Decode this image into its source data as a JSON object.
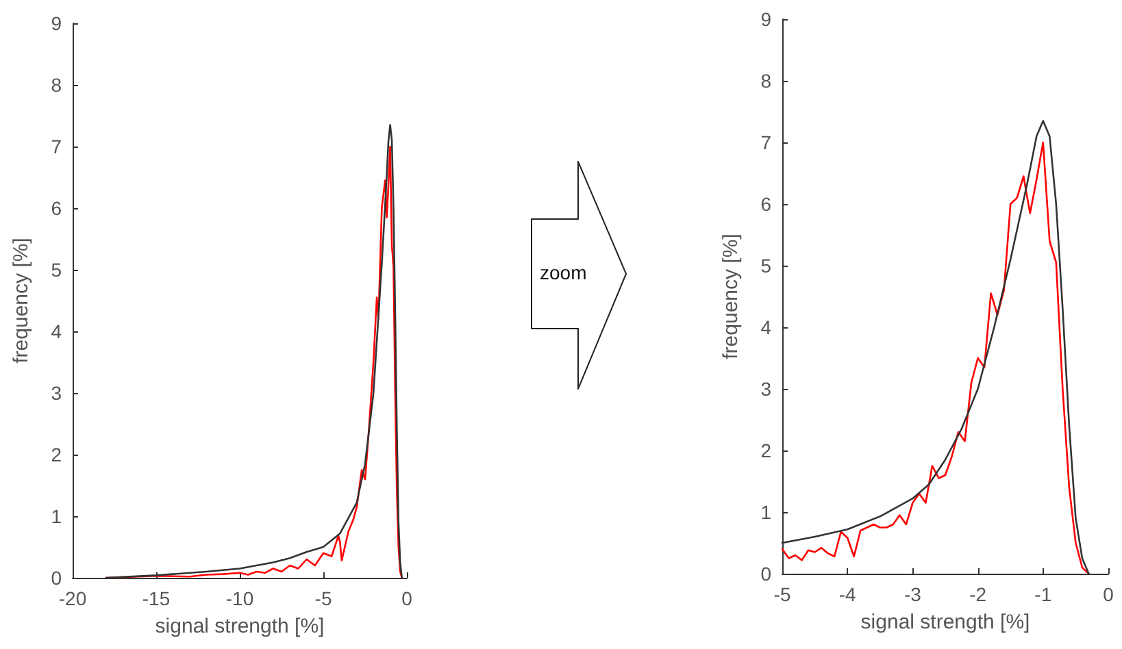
{
  "chart_data": [
    {
      "type": "line",
      "xlabel": "signal strength [%]",
      "ylabel": "frequency [%]",
      "xlim": [
        -20,
        0
      ],
      "xticks": [
        -20,
        -15,
        -10,
        -5,
        0
      ],
      "ylim": [
        0,
        9
      ],
      "yticks": [
        0,
        1,
        2,
        3,
        4,
        5,
        6,
        7,
        8,
        9
      ],
      "grid": false,
      "series": [
        {
          "color": "#ff0000",
          "x": [
            -18,
            -15,
            -13,
            -12,
            -11,
            -10,
            -9.5,
            -9,
            -8.5,
            -8,
            -7.5,
            -7,
            -6.5,
            -6,
            -5.5,
            -5,
            -4.5,
            -4.1,
            -4,
            -3.9,
            -3.5,
            -3.2,
            -3,
            -2.7,
            -2.5,
            -2.3,
            -2.1,
            -2,
            -1.8,
            -1.7,
            -1.5,
            -1.3,
            -1.2,
            -1.1,
            -1,
            -0.9,
            -0.8,
            -0.7,
            -0.6,
            -0.5,
            -0.4,
            -0.3
          ],
          "values": [
            0,
            0.03,
            0.02,
            0.05,
            0.06,
            0.08,
            0.05,
            0.1,
            0.08,
            0.15,
            0.1,
            0.2,
            0.15,
            0.3,
            0.2,
            0.4,
            0.35,
            0.68,
            0.58,
            0.28,
            0.75,
            0.95,
            1.15,
            1.75,
            1.6,
            2.3,
            3.1,
            3.5,
            4.55,
            4.2,
            6.0,
            6.45,
            5.85,
            6.4,
            7.0,
            5.4,
            5.05,
            3.0,
            1.4,
            0.5,
            0.1,
            0
          ]
        },
        {
          "color": "#333333",
          "x": [
            -18,
            -15,
            -12,
            -10,
            -8,
            -7,
            -6,
            -5,
            -4,
            -3,
            -2.5,
            -2,
            -1.5,
            -1.25,
            -1.1,
            -1,
            -0.9,
            -0.8,
            -0.7,
            -0.6,
            -0.5,
            -0.4,
            -0.3
          ],
          "values": [
            0,
            0.04,
            0.1,
            0.15,
            0.25,
            0.32,
            0.42,
            0.5,
            0.72,
            1.22,
            1.85,
            3.0,
            5.1,
            6.3,
            7.1,
            7.35,
            7.1,
            6.0,
            4.3,
            2.4,
            0.9,
            0.25,
            0
          ]
        }
      ]
    },
    {
      "type": "other",
      "annotations": [
        "zoom"
      ]
    },
    {
      "type": "line",
      "xlabel": "signal strength [%]",
      "ylabel": "frequency [%]",
      "xlim": [
        -5,
        0
      ],
      "xticks": [
        -5,
        -4,
        -3,
        -2,
        -1,
        0
      ],
      "ylim": [
        0,
        9
      ],
      "yticks": [
        0,
        1,
        2,
        3,
        4,
        5,
        6,
        7,
        8,
        9
      ],
      "grid": false,
      "series": [
        {
          "color": "#ff0000",
          "x": [
            -5,
            -4.9,
            -4.8,
            -4.7,
            -4.6,
            -4.5,
            -4.4,
            -4.3,
            -4.2,
            -4.1,
            -4,
            -3.9,
            -3.8,
            -3.7,
            -3.6,
            -3.5,
            -3.4,
            -3.3,
            -3.2,
            -3.1,
            -3,
            -2.9,
            -2.8,
            -2.7,
            -2.6,
            -2.5,
            -2.4,
            -2.3,
            -2.2,
            -2.1,
            -2,
            -1.9,
            -1.8,
            -1.7,
            -1.6,
            -1.5,
            -1.4,
            -1.3,
            -1.2,
            -1.1,
            -1,
            -0.9,
            -0.8,
            -0.7,
            -0.6,
            -0.5,
            -0.4,
            -0.3
          ],
          "values": [
            0.4,
            0.25,
            0.3,
            0.22,
            0.38,
            0.35,
            0.42,
            0.33,
            0.28,
            0.68,
            0.58,
            0.28,
            0.7,
            0.75,
            0.8,
            0.75,
            0.75,
            0.8,
            0.95,
            0.8,
            1.15,
            1.3,
            1.15,
            1.75,
            1.55,
            1.6,
            1.9,
            2.3,
            2.15,
            3.1,
            3.5,
            3.35,
            4.55,
            4.2,
            4.6,
            6.0,
            6.1,
            6.45,
            5.85,
            6.4,
            7.0,
            5.4,
            5.05,
            3.0,
            1.4,
            0.5,
            0.1,
            0
          ]
        },
        {
          "color": "#333333",
          "x": [
            -5,
            -4.5,
            -4,
            -3.5,
            -3,
            -2.75,
            -2.5,
            -2.25,
            -2,
            -1.75,
            -1.5,
            -1.25,
            -1.1,
            -1,
            -0.9,
            -0.8,
            -0.7,
            -0.6,
            -0.5,
            -0.4,
            -0.3
          ],
          "values": [
            0.5,
            0.6,
            0.72,
            0.93,
            1.22,
            1.45,
            1.85,
            2.35,
            3.0,
            4.0,
            5.1,
            6.3,
            7.1,
            7.35,
            7.1,
            6.0,
            4.3,
            2.4,
            0.9,
            0.25,
            0
          ]
        }
      ]
    }
  ]
}
